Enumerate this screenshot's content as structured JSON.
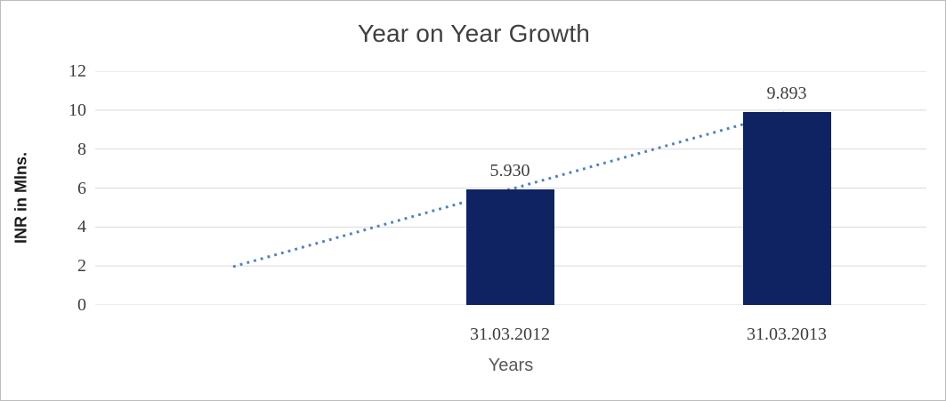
{
  "chart_data": {
    "type": "bar",
    "title": "Year on Year Growth",
    "xlabel": "Years",
    "ylabel": "INR in Mlns.",
    "categories": [
      "31.03.2012",
      "31.03.2013"
    ],
    "series": [
      {
        "name": "INR in Mlns.",
        "values": [
          5.93,
          9.893
        ],
        "data_labels": [
          "5.930",
          "9.893"
        ],
        "color": "#0f2362"
      }
    ],
    "ylim": [
      0,
      12
    ],
    "yticks": [
      0,
      2,
      4,
      6,
      8,
      10,
      12
    ],
    "grid": "horizontal-only",
    "gridline_color": "#d9d9d9",
    "legend": "none",
    "trendline": {
      "type": "linear",
      "style": "dotted",
      "color": "#4f81bd",
      "back_extend_periods": 1,
      "start_value": 1.967,
      "end_value": 9.893
    }
  }
}
